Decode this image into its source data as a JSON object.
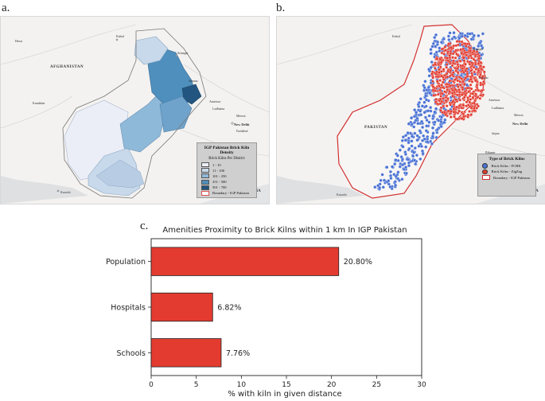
{
  "panels": {
    "a": "a.",
    "b": "b.",
    "c": "c."
  },
  "map_a": {
    "labels": {
      "afghanistan": "AFGHANISTAN",
      "kabul": "Kabul",
      "herat": "Herat",
      "kandahar": "Kandahar",
      "srinagar": "Srinagar",
      "jammu": "Jammu",
      "amritsar": "Amritsar",
      "ludhiana": "Ludhiana",
      "meerut": "Meerut",
      "new_delhi": "New Delhi",
      "faridabad": "Faridabad",
      "bikaner": "Bikaner",
      "karachi": "Karachi",
      "india": "INDIA"
    },
    "legend": {
      "title": "IGP Pakistan Brick Kiln Density",
      "subtitle": "Brick Kilns Per District",
      "classes": [
        {
          "label": "1 - 10",
          "color": "#eceef7"
        },
        {
          "label": "11 - 100",
          "color": "#c7d9ea"
        },
        {
          "label": "101 - 250",
          "color": "#8fb9d8"
        },
        {
          "label": "251 - 500",
          "color": "#4f8fbd"
        },
        {
          "label": "501 - 700",
          "color": "#22557f"
        }
      ],
      "boundary": "Boundary - IGP Pakistan",
      "boundary_color": "#e05050"
    }
  },
  "map_b": {
    "labels": {
      "pakistan": "PAKISTAN",
      "kabul": "Kabul",
      "srinagar": "Srinagar",
      "jammu": "Jammu",
      "amritsar": "Amritsar",
      "ludhiana": "Ludhiana",
      "meerut": "Meerut",
      "new_delhi": "New Delhi",
      "bikaner": "Bikaner",
      "jaipur": "Jaipur",
      "karachi": "Karachi",
      "india": "INDIA"
    },
    "legend": {
      "title": "Type of Brick Kilns",
      "entries": [
        {
          "label": "Brick Kilns - FCBK",
          "color": "#4a72d4"
        },
        {
          "label": "Brick Kilns - ZigZag",
          "color": "#e23a2e"
        }
      ],
      "boundary": "Boundary - IGP Pakistan",
      "boundary_color": "#d03030"
    }
  },
  "chart_data": {
    "type": "bar",
    "orientation": "horizontal",
    "title": "Amenities Proximity to Brick Kilns within 1 km In IGP Pakistan",
    "xlabel": "% with kiln in given distance",
    "ylabel": "",
    "categories": [
      "Population",
      "Hospitals",
      "Schools"
    ],
    "values": [
      20.8,
      6.82,
      7.76
    ],
    "value_labels": [
      "20.80%",
      "6.82%",
      "7.76%"
    ],
    "xlim": [
      0,
      30
    ],
    "xticks": [
      0,
      5,
      10,
      15,
      20,
      25,
      30
    ],
    "bar_color": "#e33b2f",
    "grid": false,
    "legend": "none"
  }
}
